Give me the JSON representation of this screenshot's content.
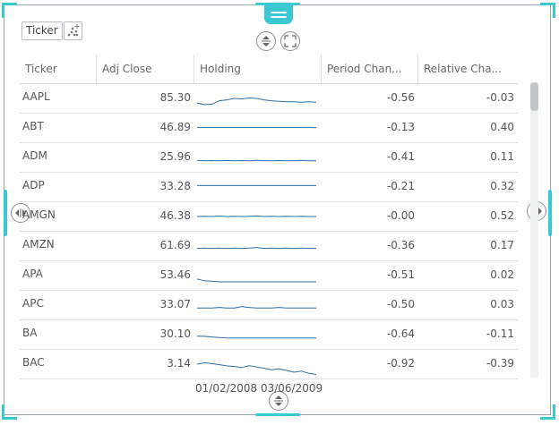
{
  "toolbar": {
    "ticker_label": "Ticker",
    "icons": [
      "move-handle-icon",
      "scatter-add-icon",
      "vertical-resize-icon",
      "fullscreen-icon",
      "horizontal-resize-icon"
    ]
  },
  "table": {
    "columns": [
      "Ticker",
      "Adj Close",
      "Holding",
      "Period Chan...",
      "Relative Cha..."
    ],
    "rows": [
      {
        "ticker": "AAPL",
        "adj_close": "85.30",
        "period_change": "-0.56",
        "relative_change": "-0.03",
        "spark": [
          0.66,
          0.72,
          0.7,
          0.58,
          0.55,
          0.5,
          0.52,
          0.48,
          0.5,
          0.55,
          0.58,
          0.6,
          0.62,
          0.62,
          0.63,
          0.62,
          0.63
        ]
      },
      {
        "ticker": "ABT",
        "adj_close": "46.89",
        "period_change": "-0.13",
        "relative_change": "0.40",
        "spark": [
          0.48,
          0.48,
          0.48,
          0.48,
          0.48,
          0.48,
          0.48,
          0.48,
          0.48,
          0.48,
          0.48,
          0.48,
          0.48,
          0.48,
          0.48,
          0.48,
          0.49
        ]
      },
      {
        "ticker": "ADM",
        "adj_close": "25.96",
        "period_change": "-0.41",
        "relative_change": "0.11",
        "spark": [
          0.6,
          0.62,
          0.61,
          0.62,
          0.61,
          0.62,
          0.61,
          0.62,
          0.6,
          0.61,
          0.62,
          0.61,
          0.62,
          0.61,
          0.6,
          0.62,
          0.62
        ]
      },
      {
        "ticker": "ADP",
        "adj_close": "33.28",
        "period_change": "-0.21",
        "relative_change": "0.32",
        "spark": [
          0.45,
          0.45,
          0.45,
          0.45,
          0.45,
          0.45,
          0.45,
          0.45,
          0.45,
          0.45,
          0.45,
          0.45,
          0.45,
          0.45,
          0.45,
          0.45,
          0.45
        ]
      },
      {
        "ticker": "AMGN",
        "adj_close": "46.38",
        "period_change": "-0.00",
        "relative_change": "0.52",
        "spark": [
          0.5,
          0.49,
          0.5,
          0.48,
          0.5,
          0.49,
          0.5,
          0.49,
          0.48,
          0.5,
          0.49,
          0.5,
          0.49,
          0.5,
          0.49,
          0.5,
          0.5
        ]
      },
      {
        "ticker": "AMZN",
        "adj_close": "61.69",
        "period_change": "-0.36",
        "relative_change": "0.17",
        "spark": [
          0.58,
          0.57,
          0.58,
          0.57,
          0.58,
          0.57,
          0.58,
          0.57,
          0.55,
          0.58,
          0.57,
          0.58,
          0.57,
          0.58,
          0.57,
          0.58,
          0.58
        ]
      },
      {
        "ticker": "APA",
        "adj_close": "53.46",
        "period_change": "-0.51",
        "relative_change": "0.02",
        "spark": [
          0.62,
          0.68,
          0.7,
          0.72,
          0.72,
          0.72,
          0.72,
          0.72,
          0.72,
          0.72,
          0.72,
          0.72,
          0.72,
          0.72,
          0.72,
          0.72,
          0.72
        ]
      },
      {
        "ticker": "APC",
        "adj_close": "33.07",
        "period_change": "-0.50",
        "relative_change": "0.03",
        "spark": [
          0.6,
          0.6,
          0.6,
          0.58,
          0.6,
          0.6,
          0.55,
          0.58,
          0.6,
          0.6,
          0.6,
          0.58,
          0.6,
          0.6,
          0.6,
          0.6,
          0.6
        ]
      },
      {
        "ticker": "BA",
        "adj_close": "30.10",
        "period_change": "-0.64",
        "relative_change": "-0.11",
        "spark": [
          0.55,
          0.56,
          0.58,
          0.6,
          0.62,
          0.62,
          0.62,
          0.62,
          0.62,
          0.62,
          0.62,
          0.62,
          0.62,
          0.62,
          0.62,
          0.62,
          0.62
        ]
      },
      {
        "ticker": "BAC",
        "adj_close": "3.14",
        "period_change": "-0.92",
        "relative_change": "-0.39",
        "spark": [
          0.5,
          0.45,
          0.48,
          0.52,
          0.56,
          0.58,
          0.62,
          0.55,
          0.6,
          0.64,
          0.7,
          0.66,
          0.72,
          0.78,
          0.74,
          0.82,
          0.86
        ]
      }
    ]
  },
  "footer": {
    "date_range": "01/02/2008 03/06/2009"
  },
  "colors": {
    "accent": "#3cc8d2",
    "sparkline": "#2e6fa8"
  }
}
